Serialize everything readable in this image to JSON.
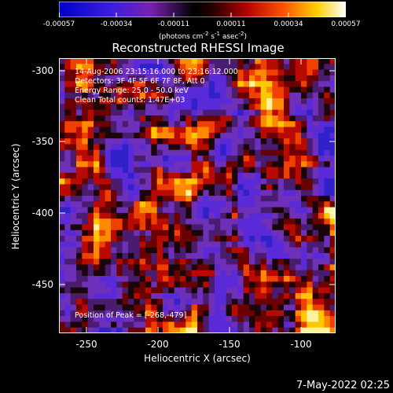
{
  "colorbar": {
    "ticks": [
      "-0.00057",
      "-0.00034",
      "-0.00011",
      "0.00011",
      "0.00034",
      "0.00057"
    ],
    "units_prefix": "(photons cm",
    "units_exp1": "-2",
    "units_mid": " s",
    "units_exp2": "-1",
    "units_mid2": " asec",
    "units_exp3": "-2",
    "units_suffix": ")"
  },
  "title": "Reconstructed RHESSI Image",
  "info": {
    "line1": "14-Aug-2006 23:15:16.000 to 23:16:12.000",
    "line2": "Detectors: 3F 4F 5F 6F 7F 8F, Att 0",
    "line3": "Energy Range: 25.0 - 50.0 keV",
    "line4": "Clean     Total counts: 1.47E+03"
  },
  "peak_text": "Position of Peak = [-268,-479]",
  "axes": {
    "xlabel": "Heliocentric X (arcsec)",
    "ylabel": "Heliocentric Y (arcsec)",
    "xticks": [
      "-250",
      "-200",
      "-150",
      "-100"
    ],
    "yticks": [
      "-300",
      "-350",
      "-400",
      "-450"
    ]
  },
  "timestamp": "7-May-2022 02:25"
}
